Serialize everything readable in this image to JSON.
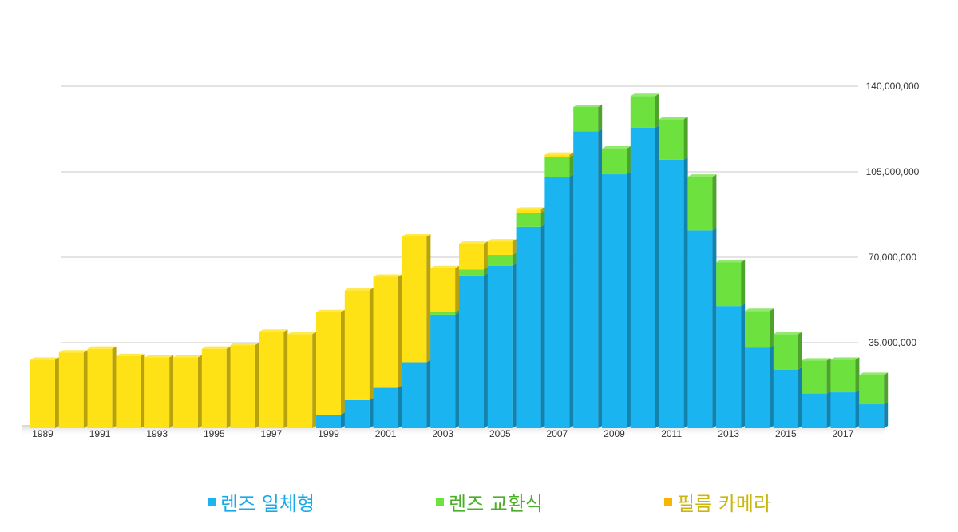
{
  "colors": {
    "compact": "#1ab4f0",
    "interchangeable": "#6de23e",
    "film": "#ffe215",
    "grid": "#c8c8c8",
    "compact_text": "#1aa9e8",
    "interchangeable_text": "#4caf2a",
    "film_text": "#c9b70f",
    "film_swatch": "#f7b500"
  },
  "chart_data": {
    "type": "bar",
    "stacked": true,
    "x": [
      1989,
      1990,
      1991,
      1992,
      1993,
      1994,
      1995,
      1996,
      1997,
      1998,
      1999,
      2000,
      2001,
      2002,
      2003,
      2004,
      2005,
      2006,
      2007,
      2008,
      2009,
      2010,
      2011,
      2012,
      2013,
      2014,
      2015,
      2016,
      2017,
      2018
    ],
    "x_tick_labels": [
      "1989",
      "1991",
      "1993",
      "1995",
      "1997",
      "1999",
      "2001",
      "2003",
      "2005",
      "2007",
      "2009",
      "2011",
      "2013",
      "2015",
      "2017"
    ],
    "ylim": [
      0,
      140000000
    ],
    "y_ticks": [
      35000000,
      70000000,
      105000000,
      140000000
    ],
    "y_tick_labels": [
      "35,000,000",
      "70,000,000",
      "105,000,000",
      "140,000,000"
    ],
    "y_axis_side": "right",
    "grid": true,
    "legend_position": "bottom",
    "series": [
      {
        "name": "렌즈 일체형",
        "color_key": "compact",
        "values": [
          0,
          0,
          0,
          0,
          0,
          0,
          0,
          0,
          0,
          0,
          5500000,
          11500000,
          16500000,
          27000000,
          46500000,
          62500000,
          66500000,
          82500000,
          103000000,
          121500000,
          104000000,
          123000000,
          110000000,
          81000000,
          50000000,
          33000000,
          24000000,
          14200000,
          14700000,
          9800000
        ]
      },
      {
        "name": "렌즈 교환식",
        "color_key": "interchangeable",
        "values": [
          0,
          0,
          0,
          0,
          0,
          0,
          0,
          0,
          0,
          0,
          0,
          0,
          0,
          0,
          1000000,
          2500000,
          4500000,
          5500000,
          8000000,
          10000000,
          10500000,
          13000000,
          16500000,
          22000000,
          18000000,
          15000000,
          14500000,
          13500000,
          13300000,
          12000000
        ]
      },
      {
        "name": "필름 카메라",
        "color_key": "film",
        "values": [
          28000000,
          31000000,
          32500000,
          29500000,
          29000000,
          29000000,
          32500000,
          34000000,
          39500000,
          38500000,
          42000000,
          45000000,
          45500000,
          51500000,
          18000000,
          10500000,
          5500000,
          1500000,
          1000000,
          0,
          0,
          0,
          0,
          0,
          0,
          0,
          0,
          0,
          0,
          0
        ]
      }
    ]
  }
}
